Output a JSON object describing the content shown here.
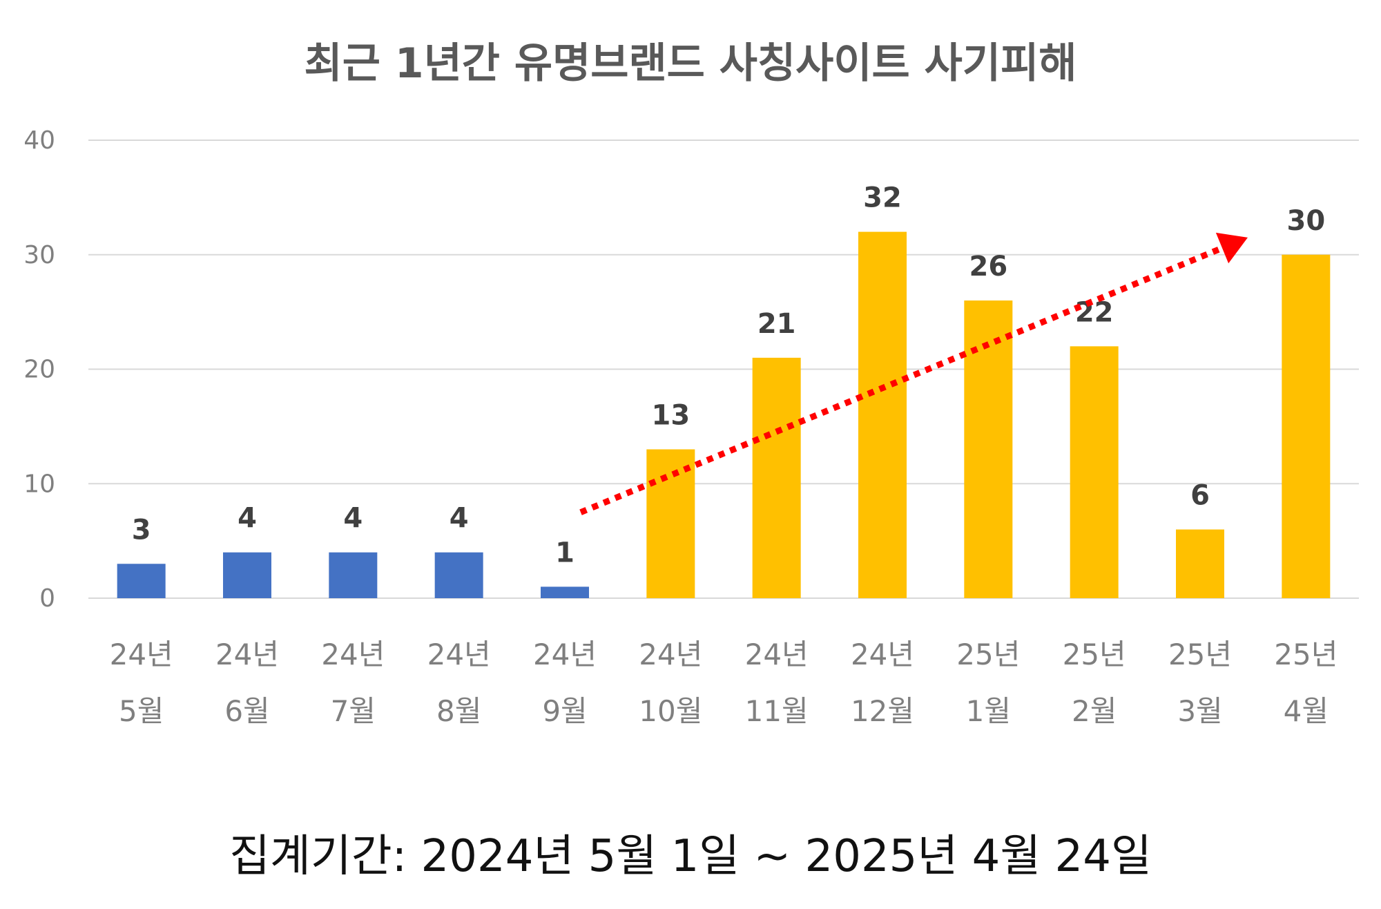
{
  "chart_data": {
    "type": "bar",
    "title": "최근 1년간 유명브랜드 사칭사이트 사기피해",
    "categories": [
      [
        "24년",
        "5월"
      ],
      [
        "24년",
        "6월"
      ],
      [
        "24년",
        "7월"
      ],
      [
        "24년",
        "8월"
      ],
      [
        "24년",
        "9월"
      ],
      [
        "24년",
        "10월"
      ],
      [
        "24년",
        "11월"
      ],
      [
        "24년",
        "12월"
      ],
      [
        "25년",
        "1월"
      ],
      [
        "25년",
        "2월"
      ],
      [
        "25년",
        "3월"
      ],
      [
        "25년",
        "4월"
      ]
    ],
    "values": [
      3,
      4,
      4,
      4,
      1,
      13,
      21,
      32,
      26,
      22,
      6,
      30
    ],
    "bar_colors": [
      "#4472c4",
      "#4472c4",
      "#4472c4",
      "#4472c4",
      "#4472c4",
      "#ffc000",
      "#ffc000",
      "#ffc000",
      "#ffc000",
      "#ffc000",
      "#ffc000",
      "#ffc000"
    ],
    "ylim": [
      0,
      40
    ],
    "yticks": [
      0,
      10,
      20,
      30,
      40
    ],
    "xlabel": "",
    "ylabel": "",
    "grid": true,
    "data_labels": true,
    "annotations": [
      {
        "type": "trend-arrow",
        "style": "dotted",
        "color": "#ff0000",
        "from": {
          "x_index": 4.15,
          "y": 7.5
        },
        "to": {
          "x_index": 10.45,
          "y": 31.5
        }
      }
    ]
  },
  "footnote": "집계기간: 2024년 5월 1일 ~ 2025년 4월 24일"
}
